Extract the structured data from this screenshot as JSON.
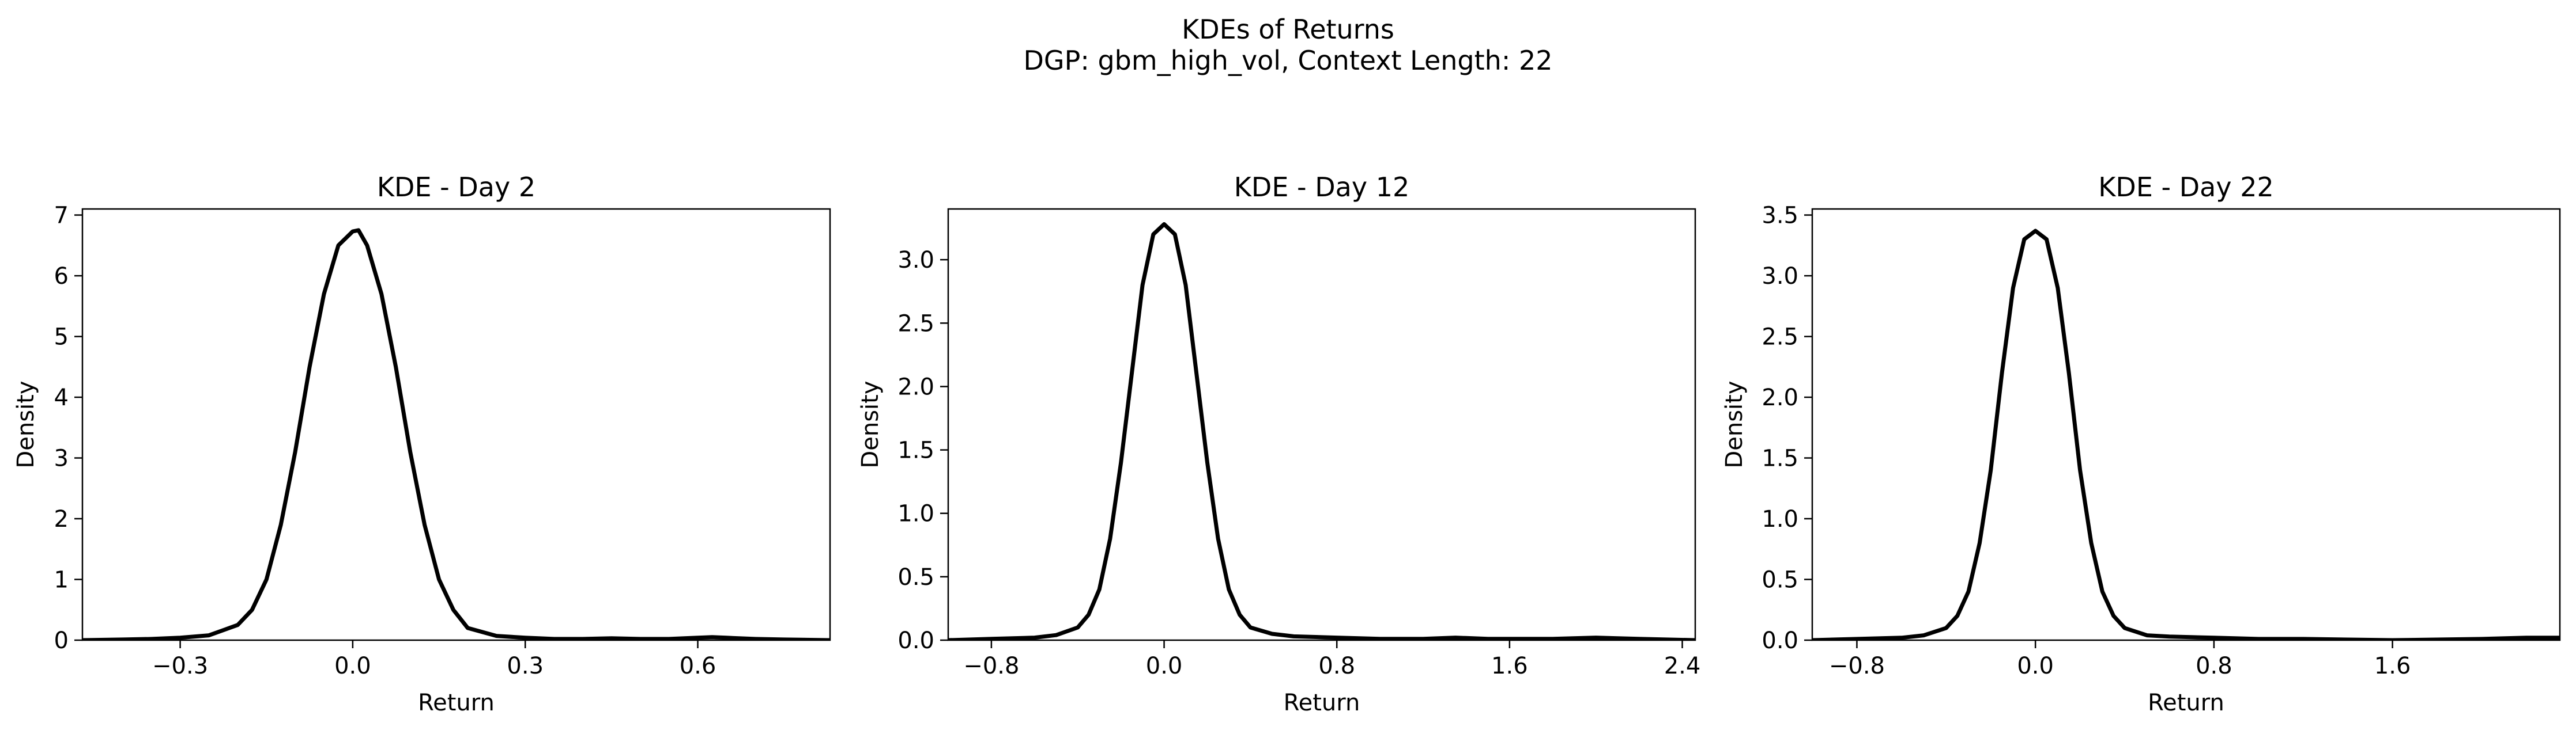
{
  "figure": {
    "title_line1": "KDEs of Returns",
    "title_line2": "DGP: gbm_high_vol, Context Length: 22"
  },
  "chart_data": [
    {
      "type": "line",
      "title": "KDE - Day 2",
      "xlabel": "Return",
      "ylabel": "Density",
      "xlim": [
        -0.47,
        0.83
      ],
      "ylim": [
        0,
        7.1
      ],
      "xticks": [
        -0.3,
        0.0,
        0.3,
        0.6
      ],
      "xtick_labels": [
        "−0.3",
        "0.0",
        "0.3",
        "0.6"
      ],
      "yticks": [
        0,
        1,
        2,
        3,
        4,
        5,
        6,
        7
      ],
      "ytick_labels": [
        "0",
        "1",
        "2",
        "3",
        "4",
        "5",
        "6",
        "7"
      ],
      "grid": false,
      "line_color": "#000000",
      "series": [
        {
          "x": [
            -0.47,
            -0.4,
            -0.35,
            -0.3,
            -0.25,
            -0.2,
            -0.175,
            -0.15,
            -0.125,
            -0.1,
            -0.075,
            -0.05,
            -0.025,
            0.0,
            0.01,
            0.025,
            0.05,
            0.075,
            0.1,
            0.125,
            0.15,
            0.175,
            0.2,
            0.25,
            0.3,
            0.35,
            0.4,
            0.45,
            0.5,
            0.55,
            0.6,
            0.625,
            0.65,
            0.7,
            0.75,
            0.83
          ],
          "y": [
            0.0,
            0.01,
            0.02,
            0.04,
            0.08,
            0.25,
            0.5,
            1.0,
            1.9,
            3.1,
            4.5,
            5.7,
            6.5,
            6.73,
            6.75,
            6.5,
            5.7,
            4.5,
            3.1,
            1.9,
            1.0,
            0.5,
            0.2,
            0.07,
            0.04,
            0.02,
            0.02,
            0.03,
            0.02,
            0.02,
            0.04,
            0.05,
            0.04,
            0.02,
            0.01,
            0.0
          ]
        }
      ]
    },
    {
      "type": "line",
      "title": "KDE - Day 12",
      "xlabel": "Return",
      "ylabel": "Density",
      "xlim": [
        -1.0,
        2.46
      ],
      "ylim": [
        0,
        3.4
      ],
      "xticks": [
        -0.8,
        0.0,
        0.8,
        1.6,
        2.4
      ],
      "xtick_labels": [
        "−0.8",
        "0.0",
        "0.8",
        "1.6",
        "2.4"
      ],
      "yticks": [
        0.0,
        0.5,
        1.0,
        1.5,
        2.0,
        2.5,
        3.0
      ],
      "ytick_labels": [
        "0.0",
        "0.5",
        "1.0",
        "1.5",
        "2.0",
        "2.5",
        "3.0"
      ],
      "grid": false,
      "line_color": "#000000",
      "series": [
        {
          "x": [
            -1.0,
            -0.8,
            -0.6,
            -0.5,
            -0.4,
            -0.35,
            -0.3,
            -0.25,
            -0.2,
            -0.15,
            -0.1,
            -0.05,
            0.0,
            0.05,
            0.1,
            0.15,
            0.2,
            0.25,
            0.3,
            0.35,
            0.4,
            0.5,
            0.6,
            0.8,
            1.0,
            1.2,
            1.35,
            1.5,
            1.8,
            2.0,
            2.2,
            2.46
          ],
          "y": [
            0.0,
            0.01,
            0.02,
            0.04,
            0.1,
            0.2,
            0.4,
            0.8,
            1.4,
            2.1,
            2.8,
            3.2,
            3.28,
            3.2,
            2.8,
            2.1,
            1.4,
            0.8,
            0.4,
            0.2,
            0.1,
            0.05,
            0.03,
            0.02,
            0.01,
            0.01,
            0.02,
            0.01,
            0.01,
            0.02,
            0.01,
            0.0
          ]
        }
      ]
    },
    {
      "type": "line",
      "title": "KDE - Day 22",
      "xlabel": "Return",
      "ylabel": "Density",
      "xlim": [
        -1.0,
        2.35
      ],
      "ylim": [
        0,
        3.55
      ],
      "xticks": [
        -0.8,
        0.0,
        0.8,
        1.6
      ],
      "xtick_labels": [
        "−0.8",
        "0.0",
        "0.8",
        "1.6"
      ],
      "yticks": [
        0.0,
        0.5,
        1.0,
        1.5,
        2.0,
        2.5,
        3.0,
        3.5
      ],
      "ytick_labels": [
        "0.0",
        "0.5",
        "1.0",
        "1.5",
        "2.0",
        "2.5",
        "3.0",
        "3.5"
      ],
      "grid": false,
      "line_color": "#000000",
      "series": [
        {
          "x": [
            -1.0,
            -0.8,
            -0.6,
            -0.5,
            -0.4,
            -0.35,
            -0.3,
            -0.25,
            -0.2,
            -0.15,
            -0.1,
            -0.05,
            0.0,
            0.05,
            0.1,
            0.15,
            0.2,
            0.25,
            0.3,
            0.35,
            0.4,
            0.5,
            0.6,
            0.8,
            1.0,
            1.2,
            1.6,
            2.0,
            2.2,
            2.35
          ],
          "y": [
            0.0,
            0.01,
            0.02,
            0.04,
            0.1,
            0.2,
            0.4,
            0.8,
            1.4,
            2.2,
            2.9,
            3.3,
            3.37,
            3.3,
            2.9,
            2.2,
            1.4,
            0.8,
            0.4,
            0.2,
            0.1,
            0.04,
            0.03,
            0.02,
            0.01,
            0.01,
            0.0,
            0.01,
            0.02,
            0.02
          ]
        }
      ]
    }
  ]
}
